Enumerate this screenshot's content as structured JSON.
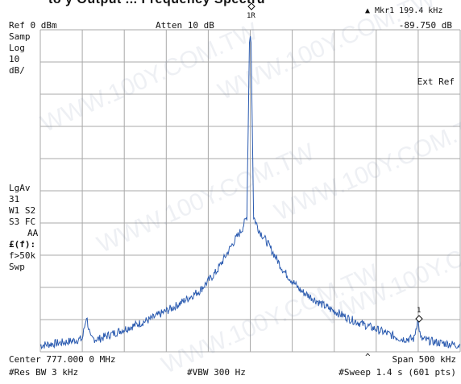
{
  "title_fragment": "to y Output ... Frequency Spectru",
  "marker_readout": {
    "label": "▲ Mkr1",
    "freq": "199.4 kHz",
    "level": "-89.750 dB"
  },
  "header": {
    "ref": "Ref 0 dBm",
    "atten": "Atten 10 dB"
  },
  "left_panel": {
    "samp": "Samp",
    "log": "Log",
    "scale_value": "10",
    "scale_unit": "dB/",
    "lgav": "LgAv",
    "lgav_count": "31",
    "w1s2": "W1  S2",
    "s3fc": "S3  FC",
    "aa": "AA",
    "ff": "£(f):",
    "f50k": "f>50k",
    "swp": "Swp"
  },
  "ext_ref": "Ext Ref",
  "markers": {
    "m1r_label": "1R",
    "m1_label": "1"
  },
  "footer": {
    "center": "Center 777.000 0 MHz",
    "span": "Span 500 kHz",
    "res_bw": "#Res BW 3 kHz",
    "vbw": "#VBW 300 Hz",
    "sweep": "#Sweep 1.4 s (601 pts)",
    "caret": "^"
  },
  "watermark": "WWW.100Y.COM.TW",
  "colors": {
    "trace": "#2b5bb0",
    "grid": "#a8a8a8",
    "text": "#111111"
  },
  "chart_data": {
    "type": "line",
    "title": "",
    "xlabel": "",
    "ylabel": "",
    "x_center_mhz": 777.0,
    "x_span_khz": 500,
    "xlim_khz": [
      -250,
      250
    ],
    "ylim_db": [
      -100,
      0
    ],
    "grid": true,
    "series": [
      {
        "x": [
          -250,
          -220,
          -200,
          -195,
          -190,
          -180,
          -150,
          -120,
          -90,
          -60,
          -40,
          -20,
          -10,
          -4,
          -1,
          0,
          1,
          4,
          10,
          20,
          40,
          60,
          90,
          120,
          150,
          180,
          195,
          199.4,
          203,
          220,
          250
        ],
        "y": [
          -98,
          -97,
          -96,
          -89,
          -96,
          -96,
          -93,
          -90,
          -86,
          -81,
          -75,
          -66,
          -62,
          -58,
          -4,
          -2,
          -4,
          -58,
          -62,
          -66,
          -75,
          -81,
          -86,
          -90,
          -93,
          -96,
          -96,
          -89.75,
          -96,
          -97,
          -98
        ]
      }
    ],
    "markers": [
      {
        "label": "1R",
        "x": 0,
        "y": -2
      },
      {
        "label": "1",
        "x": 199.4,
        "y": -89.75
      }
    ]
  }
}
